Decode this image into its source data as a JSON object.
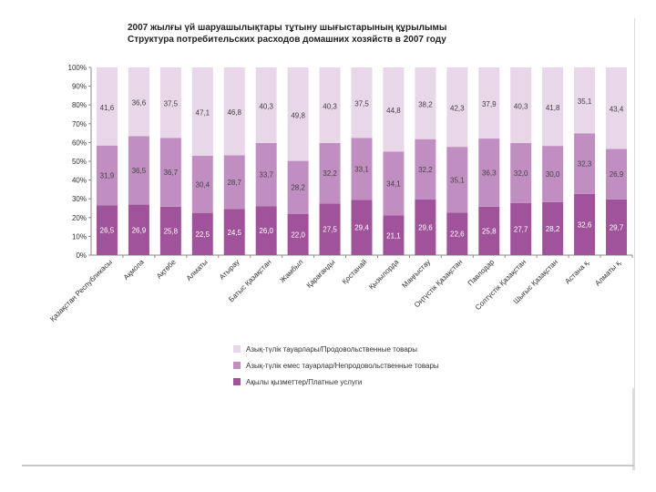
{
  "titles": {
    "line1": "2007 жылғы үй шаруашылықтары тұтыну шығыстарының құрылымы",
    "line2": "Структура потребительских расходов домашних хозяйств в 2007 году"
  },
  "chart_data": {
    "type": "stacked-bar-100",
    "categories": [
      "Қазақстан Республикасы",
      "Ақмола",
      "Ақтөбе",
      "Алматы",
      "Атырау",
      "Батыс Қазақстан",
      "Жамбыл",
      "Қарағанды",
      "Қостанай",
      "Қызылорда",
      "Маңғыстау",
      "Оңтүстік Қазақстан",
      "Павлодар",
      "Солтүстік Қазақстан",
      "Шығыс Қазақстан",
      "Астана қ.",
      "Алматы қ."
    ],
    "series": [
      {
        "name": "Ақылы қызметтер/Платные услуги",
        "color": "#a0539a",
        "values": [
          26.5,
          26.9,
          25.8,
          22.5,
          24.5,
          26.0,
          22.0,
          27.5,
          29.4,
          21.1,
          29.6,
          22.6,
          25.8,
          27.7,
          28.2,
          32.6,
          29.7
        ],
        "labels": [
          "26,5",
          "26,9",
          "25,8",
          "22,5",
          "24,5",
          "26,0",
          "22,0",
          "27,5",
          "29,4",
          "21,1",
          "29,6",
          "22,6",
          "25,8",
          "27,7",
          "28,2",
          "32,6",
          "29,7"
        ]
      },
      {
        "name": "Азық-түлік емес тауарлар/Непродовольственные товары",
        "color": "#c08ec0",
        "values": [
          31.9,
          36.5,
          36.7,
          30.4,
          28.7,
          33.7,
          28.2,
          32.2,
          33.1,
          34.1,
          32.2,
          35.1,
          36.3,
          32.0,
          30.0,
          32.3,
          26.9
        ],
        "labels": [
          "31,9",
          "36,5",
          "36,7",
          "30,4",
          "28,7",
          "33,7",
          "28,2",
          "32,2",
          "33,1",
          "34,1",
          "32,2",
          "35,1",
          "36,3",
          "32,0",
          "30,0",
          "32,3",
          "26,9"
        ]
      },
      {
        "name": "Азық-түлік тауарлары/Продовольственные товары",
        "color": "#e8d6e9",
        "values": [
          41.6,
          36.6,
          37.5,
          47.1,
          46.8,
          40.3,
          49.8,
          40.3,
          37.5,
          44.8,
          38.2,
          42.3,
          37.9,
          40.3,
          41.8,
          35.1,
          43.4
        ],
        "labels": [
          "41,6",
          "36,6",
          "37,5",
          "47,1",
          "46,8",
          "40,3",
          "49,8",
          "40,3",
          "37,5",
          "44,8",
          "38,2",
          "42,3",
          "37,9",
          "40,3",
          "41,8",
          "35,1",
          "43,4"
        ]
      }
    ],
    "yticks": [
      "0%",
      "10%",
      "20%",
      "30%",
      "40%",
      "50%",
      "60%",
      "70%",
      "80%",
      "90%",
      "100%"
    ],
    "ylim": [
      0,
      100
    ],
    "legend_order": [
      2,
      1,
      0
    ],
    "legend_position": "bottom"
  }
}
